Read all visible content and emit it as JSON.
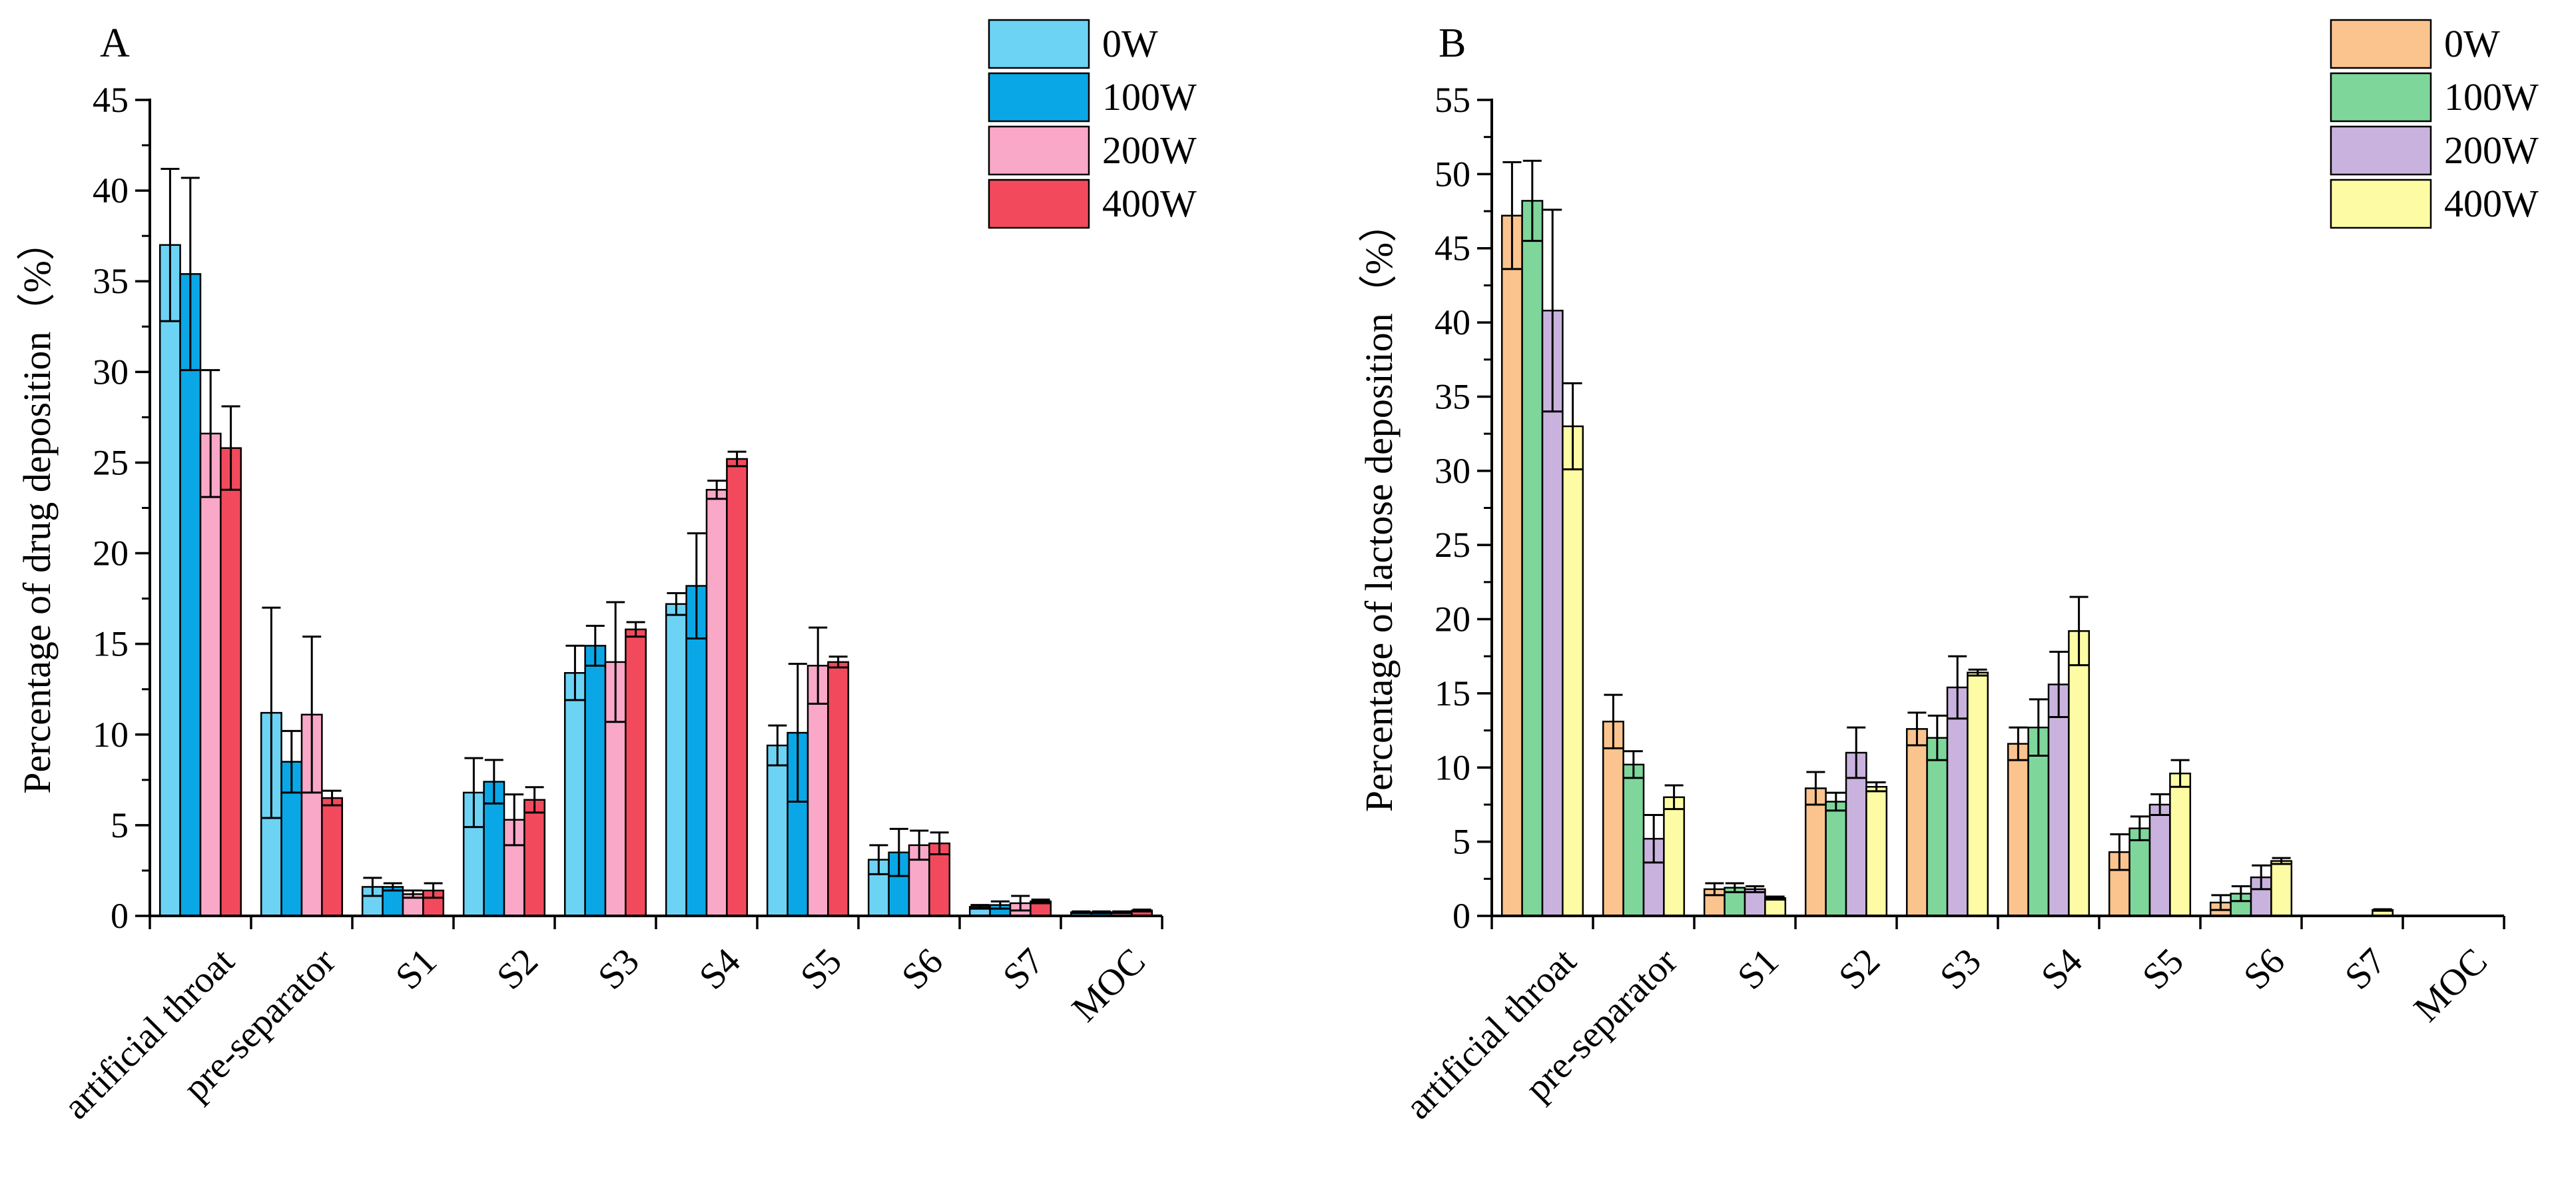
{
  "chart_data": [
    {
      "panel_label": "A",
      "type": "bar",
      "ylabel": "Percentage of drug deposition（%）",
      "xlabel": "",
      "ylim": [
        0,
        45
      ],
      "yticks": [
        0,
        5,
        10,
        15,
        20,
        25,
        30,
        35,
        40,
        45
      ],
      "grid": false,
      "legend_position": "top-right",
      "categories": [
        "artificial throat",
        "pre-separator",
        "S1",
        "S2",
        "S3",
        "S4",
        "S5",
        "S6",
        "S7",
        "MOC"
      ],
      "series": [
        {
          "name": "0W",
          "color": "#6dd3f5",
          "values": [
            37.0,
            11.2,
            1.6,
            6.8,
            13.4,
            17.2,
            9.4,
            3.1,
            0.5,
            0.2
          ],
          "errors": [
            4.2,
            5.8,
            0.5,
            1.9,
            1.5,
            0.6,
            1.1,
            0.8,
            0.1,
            0.05
          ]
        },
        {
          "name": "100W",
          "color": "#0aa7e6",
          "values": [
            35.4,
            8.5,
            1.6,
            7.4,
            14.9,
            18.2,
            10.1,
            3.5,
            0.6,
            0.2
          ],
          "errors": [
            5.3,
            1.7,
            0.2,
            1.2,
            1.1,
            2.9,
            3.8,
            1.3,
            0.2,
            0.05
          ]
        },
        {
          "name": "200W",
          "color": "#f9a8c8",
          "values": [
            26.6,
            11.1,
            1.2,
            5.3,
            14.0,
            23.5,
            13.8,
            3.9,
            0.7,
            0.2
          ],
          "errors": [
            3.5,
            4.3,
            0.2,
            1.4,
            3.3,
            0.5,
            2.1,
            0.8,
            0.4,
            0.05
          ]
        },
        {
          "name": "400W",
          "color": "#f24a5c",
          "values": [
            25.8,
            6.5,
            1.4,
            6.4,
            15.8,
            25.2,
            14.0,
            4.0,
            0.8,
            0.3
          ],
          "errors": [
            2.3,
            0.4,
            0.4,
            0.7,
            0.4,
            0.4,
            0.3,
            0.6,
            0.1,
            0.05
          ]
        }
      ]
    },
    {
      "panel_label": "B",
      "type": "bar",
      "ylabel": "Percentage of lactose deposition（%）",
      "xlabel": "",
      "ylim": [
        0,
        55
      ],
      "yticks": [
        0,
        5,
        10,
        15,
        20,
        25,
        30,
        35,
        40,
        45,
        50,
        55
      ],
      "grid": false,
      "legend_position": "top-right",
      "categories": [
        "artificial throat",
        "pre-separator",
        "S1",
        "S2",
        "S3",
        "S4",
        "S5",
        "S6",
        "S7",
        "MOC"
      ],
      "series": [
        {
          "name": "0W",
          "color": "#fbc48f",
          "values": [
            47.2,
            13.1,
            1.8,
            8.6,
            12.6,
            11.6,
            4.3,
            0.9,
            0.0,
            0.0
          ],
          "errors": [
            3.6,
            1.8,
            0.4,
            1.1,
            1.1,
            1.1,
            1.2,
            0.5,
            0.0,
            0.0
          ]
        },
        {
          "name": "100W",
          "color": "#7ed69b",
          "values": [
            48.2,
            10.2,
            1.9,
            7.7,
            12.0,
            12.7,
            5.9,
            1.5,
            0.0,
            0.0
          ],
          "errors": [
            2.7,
            0.9,
            0.3,
            0.6,
            1.5,
            1.9,
            0.8,
            0.5,
            0.0,
            0.0
          ]
        },
        {
          "name": "200W",
          "color": "#c9b3de",
          "values": [
            40.8,
            5.2,
            1.8,
            11.0,
            15.4,
            15.6,
            7.5,
            2.6,
            0.0,
            0.0
          ],
          "errors": [
            6.8,
            1.6,
            0.2,
            1.7,
            2.1,
            2.2,
            0.7,
            0.8,
            0.0,
            0.0
          ]
        },
        {
          "name": "400W",
          "color": "#fdfca4",
          "values": [
            33.0,
            8.0,
            1.2,
            8.7,
            16.4,
            19.2,
            9.6,
            3.7,
            0.4,
            0.0
          ],
          "errors": [
            2.9,
            0.8,
            0.1,
            0.3,
            0.2,
            2.3,
            0.9,
            0.2,
            0.05,
            0.0
          ]
        }
      ]
    }
  ]
}
